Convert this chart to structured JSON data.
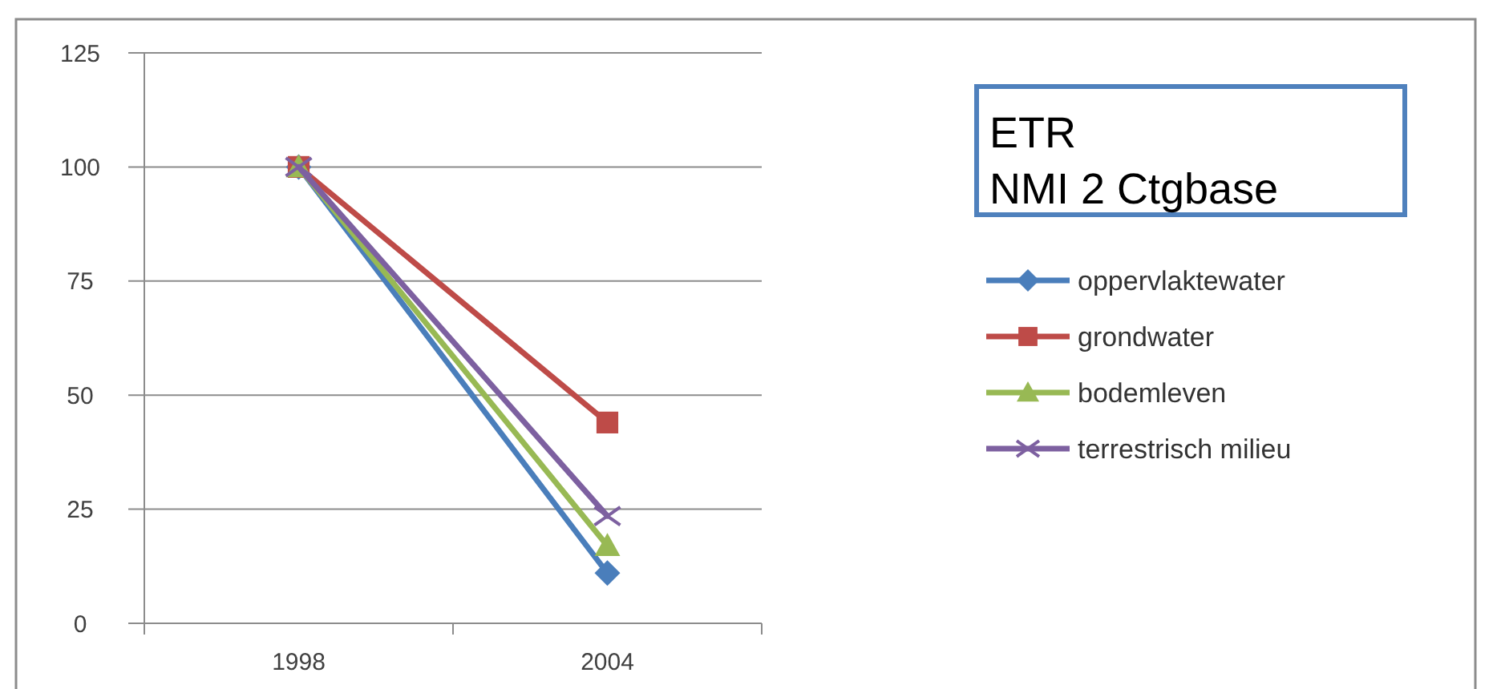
{
  "chart_data": {
    "type": "line",
    "title": "ETR\nNMI 2 Ctgbase",
    "categories": [
      "1998",
      "2004"
    ],
    "series": [
      {
        "name": "oppervlaktewater",
        "color": "#4a7ebb",
        "marker": "diamond",
        "values": [
          100,
          11
        ]
      },
      {
        "name": "grondwater",
        "color": "#be4b48",
        "marker": "square",
        "values": [
          100,
          44
        ]
      },
      {
        "name": "bodemleven",
        "color": "#98b954",
        "marker": "triangle",
        "values": [
          100,
          17
        ]
      },
      {
        "name": "terrestrisch milieu",
        "color": "#7d60a0",
        "marker": "cross",
        "values": [
          100,
          23.5
        ]
      }
    ],
    "ylim": [
      0,
      125
    ],
    "yticks": [
      0,
      25,
      50,
      75,
      100,
      125
    ],
    "grid": "y",
    "legend": "right",
    "line_style": "solid"
  }
}
